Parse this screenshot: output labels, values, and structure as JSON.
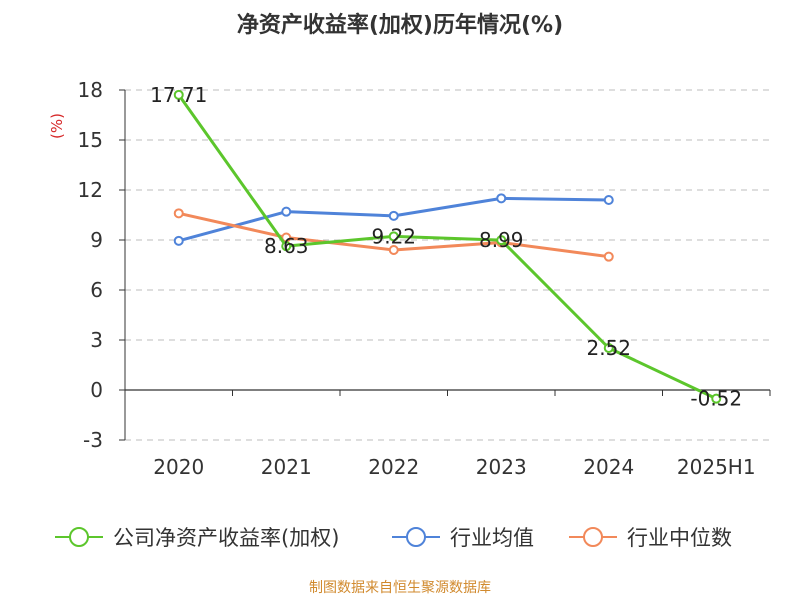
{
  "chart_data": {
    "type": "line",
    "title": "净资产收益率(加权)历年情况(%)",
    "ylabel": "(%)",
    "categories": [
      "2020",
      "2021",
      "2022",
      "2023",
      "2024",
      "2025H1"
    ],
    "y_ticks": [
      "18",
      "15",
      "12",
      "9",
      "6",
      "3",
      "0",
      "-3"
    ],
    "ylim": [
      -3,
      18
    ],
    "grid": true,
    "legend_position": "bottom",
    "series": [
      {
        "name": "公司净资产收益率(加权)",
        "color": "#5cc62c",
        "values": [
          17.71,
          8.63,
          9.22,
          8.99,
          2.52,
          -0.52
        ],
        "labels": [
          "17.71",
          "8.63",
          "9.22",
          "8.99",
          "2.52",
          "-0.52"
        ]
      },
      {
        "name": "行业均值",
        "color": "#4f83d9",
        "values": [
          8.95,
          10.7,
          10.45,
          11.5,
          11.4,
          null
        ]
      },
      {
        "name": "行业中位数",
        "color": "#f2895a",
        "values": [
          10.6,
          9.15,
          8.4,
          8.85,
          8.0,
          null
        ]
      }
    ]
  },
  "source": "制图数据来自恒生聚源数据库"
}
